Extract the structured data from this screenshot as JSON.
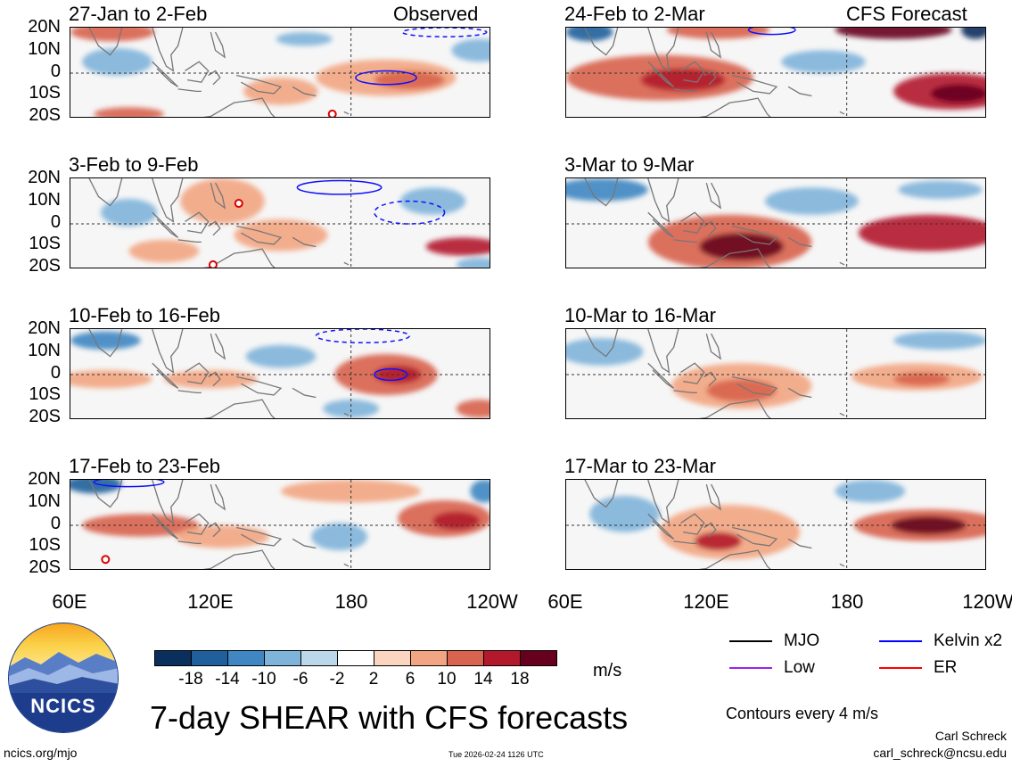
{
  "panels": [
    {
      "id": "obs1",
      "title": "27-Jan to 2-Feb",
      "tag": "Observed"
    },
    {
      "id": "fc1",
      "title": "24-Feb to 2-Mar",
      "tag": "CFS Forecast"
    },
    {
      "id": "obs2",
      "title": "3-Feb to 9-Feb",
      "tag": ""
    },
    {
      "id": "fc2",
      "title": "3-Mar to 9-Mar",
      "tag": ""
    },
    {
      "id": "obs3",
      "title": "10-Feb to 16-Feb",
      "tag": ""
    },
    {
      "id": "fc3",
      "title": "10-Mar to 16-Mar",
      "tag": ""
    },
    {
      "id": "obs4",
      "title": "17-Feb to 23-Feb",
      "tag": ""
    },
    {
      "id": "fc4",
      "title": "17-Mar to 23-Mar",
      "tag": ""
    }
  ],
  "lat_labels": [
    "20N",
    "10N",
    "0",
    "10S",
    "20S"
  ],
  "lon_labels": [
    "60E",
    "120E",
    "180",
    "120W"
  ],
  "colorbar": {
    "colors": [
      "#0a2f5c",
      "#1f5f9b",
      "#3f86c2",
      "#7fb4da",
      "#bcd7ea",
      "#ffffff",
      "#fcd5c0",
      "#f2a582",
      "#d8634e",
      "#b3192b",
      "#67001f"
    ],
    "ticks": [
      "-18",
      "-14",
      "-10",
      "-6",
      "-2",
      "2",
      "6",
      "10",
      "14",
      "18"
    ],
    "units": "m/s"
  },
  "legend": [
    {
      "label": "MJO",
      "color": "#000000"
    },
    {
      "label": "Kelvin x2",
      "color": "#0000ff"
    },
    {
      "label": "Low",
      "color": "#a020f0"
    },
    {
      "label": "ER",
      "color": "#ff0000"
    }
  ],
  "contour_note": "Contours every 4 m/s",
  "main_title": "7-day SHEAR with CFS forecasts",
  "logo_text": "NCICS",
  "site_url": "ncics.org/mjo",
  "timestamp": "Tue 2026-02-24 1126 UTC",
  "author_name": "Carl Schreck",
  "author_email": "carl_schreck@ncsu.edu",
  "chart_data": {
    "type": "heatmap",
    "title": "7-day SHEAR with CFS forecasts",
    "units": "m/s",
    "xlim": [
      "60E",
      "120W"
    ],
    "ylim": [
      "20S",
      "20N"
    ],
    "x_ticks": [
      "60E",
      "120E",
      "180",
      "120W"
    ],
    "y_ticks": [
      "20N",
      "10N",
      "0",
      "10S",
      "20S"
    ],
    "color_levels": [
      -18,
      -14,
      -10,
      -6,
      -2,
      2,
      6,
      10,
      14,
      18
    ],
    "contour_interval": 4,
    "contour_types": [
      "MJO",
      "Kelvin x2",
      "Low",
      "ER"
    ],
    "panels_observed": [
      "27-Jan to 2-Feb",
      "3-Feb to 9-Feb",
      "10-Feb to 16-Feb",
      "17-Feb to 23-Feb"
    ],
    "panels_forecast": [
      "24-Feb to 2-Mar",
      "3-Mar to 9-Mar",
      "10-Mar to 16-Mar",
      "17-Mar to 23-Mar"
    ]
  }
}
